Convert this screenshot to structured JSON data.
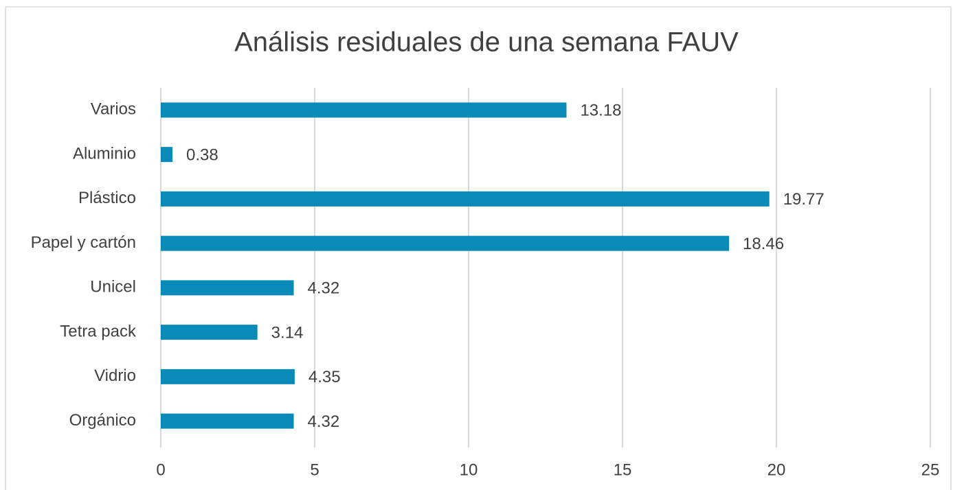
{
  "chart_data": {
    "type": "barh",
    "title": "Análisis residuales de una semana FAUV",
    "categories": [
      "Varios",
      "Aluminio",
      "Plástico",
      "Papel y cartón",
      "Unicel",
      "Tetra pack",
      "Vidrio",
      "Orgánico"
    ],
    "values": [
      13.18,
      0.38,
      19.77,
      18.46,
      4.32,
      3.14,
      4.35,
      4.32
    ],
    "color": "#0a8ab6",
    "xlim": [
      0,
      25
    ],
    "xticks": [
      0,
      5,
      10,
      15,
      20,
      25
    ],
    "grid": true
  }
}
